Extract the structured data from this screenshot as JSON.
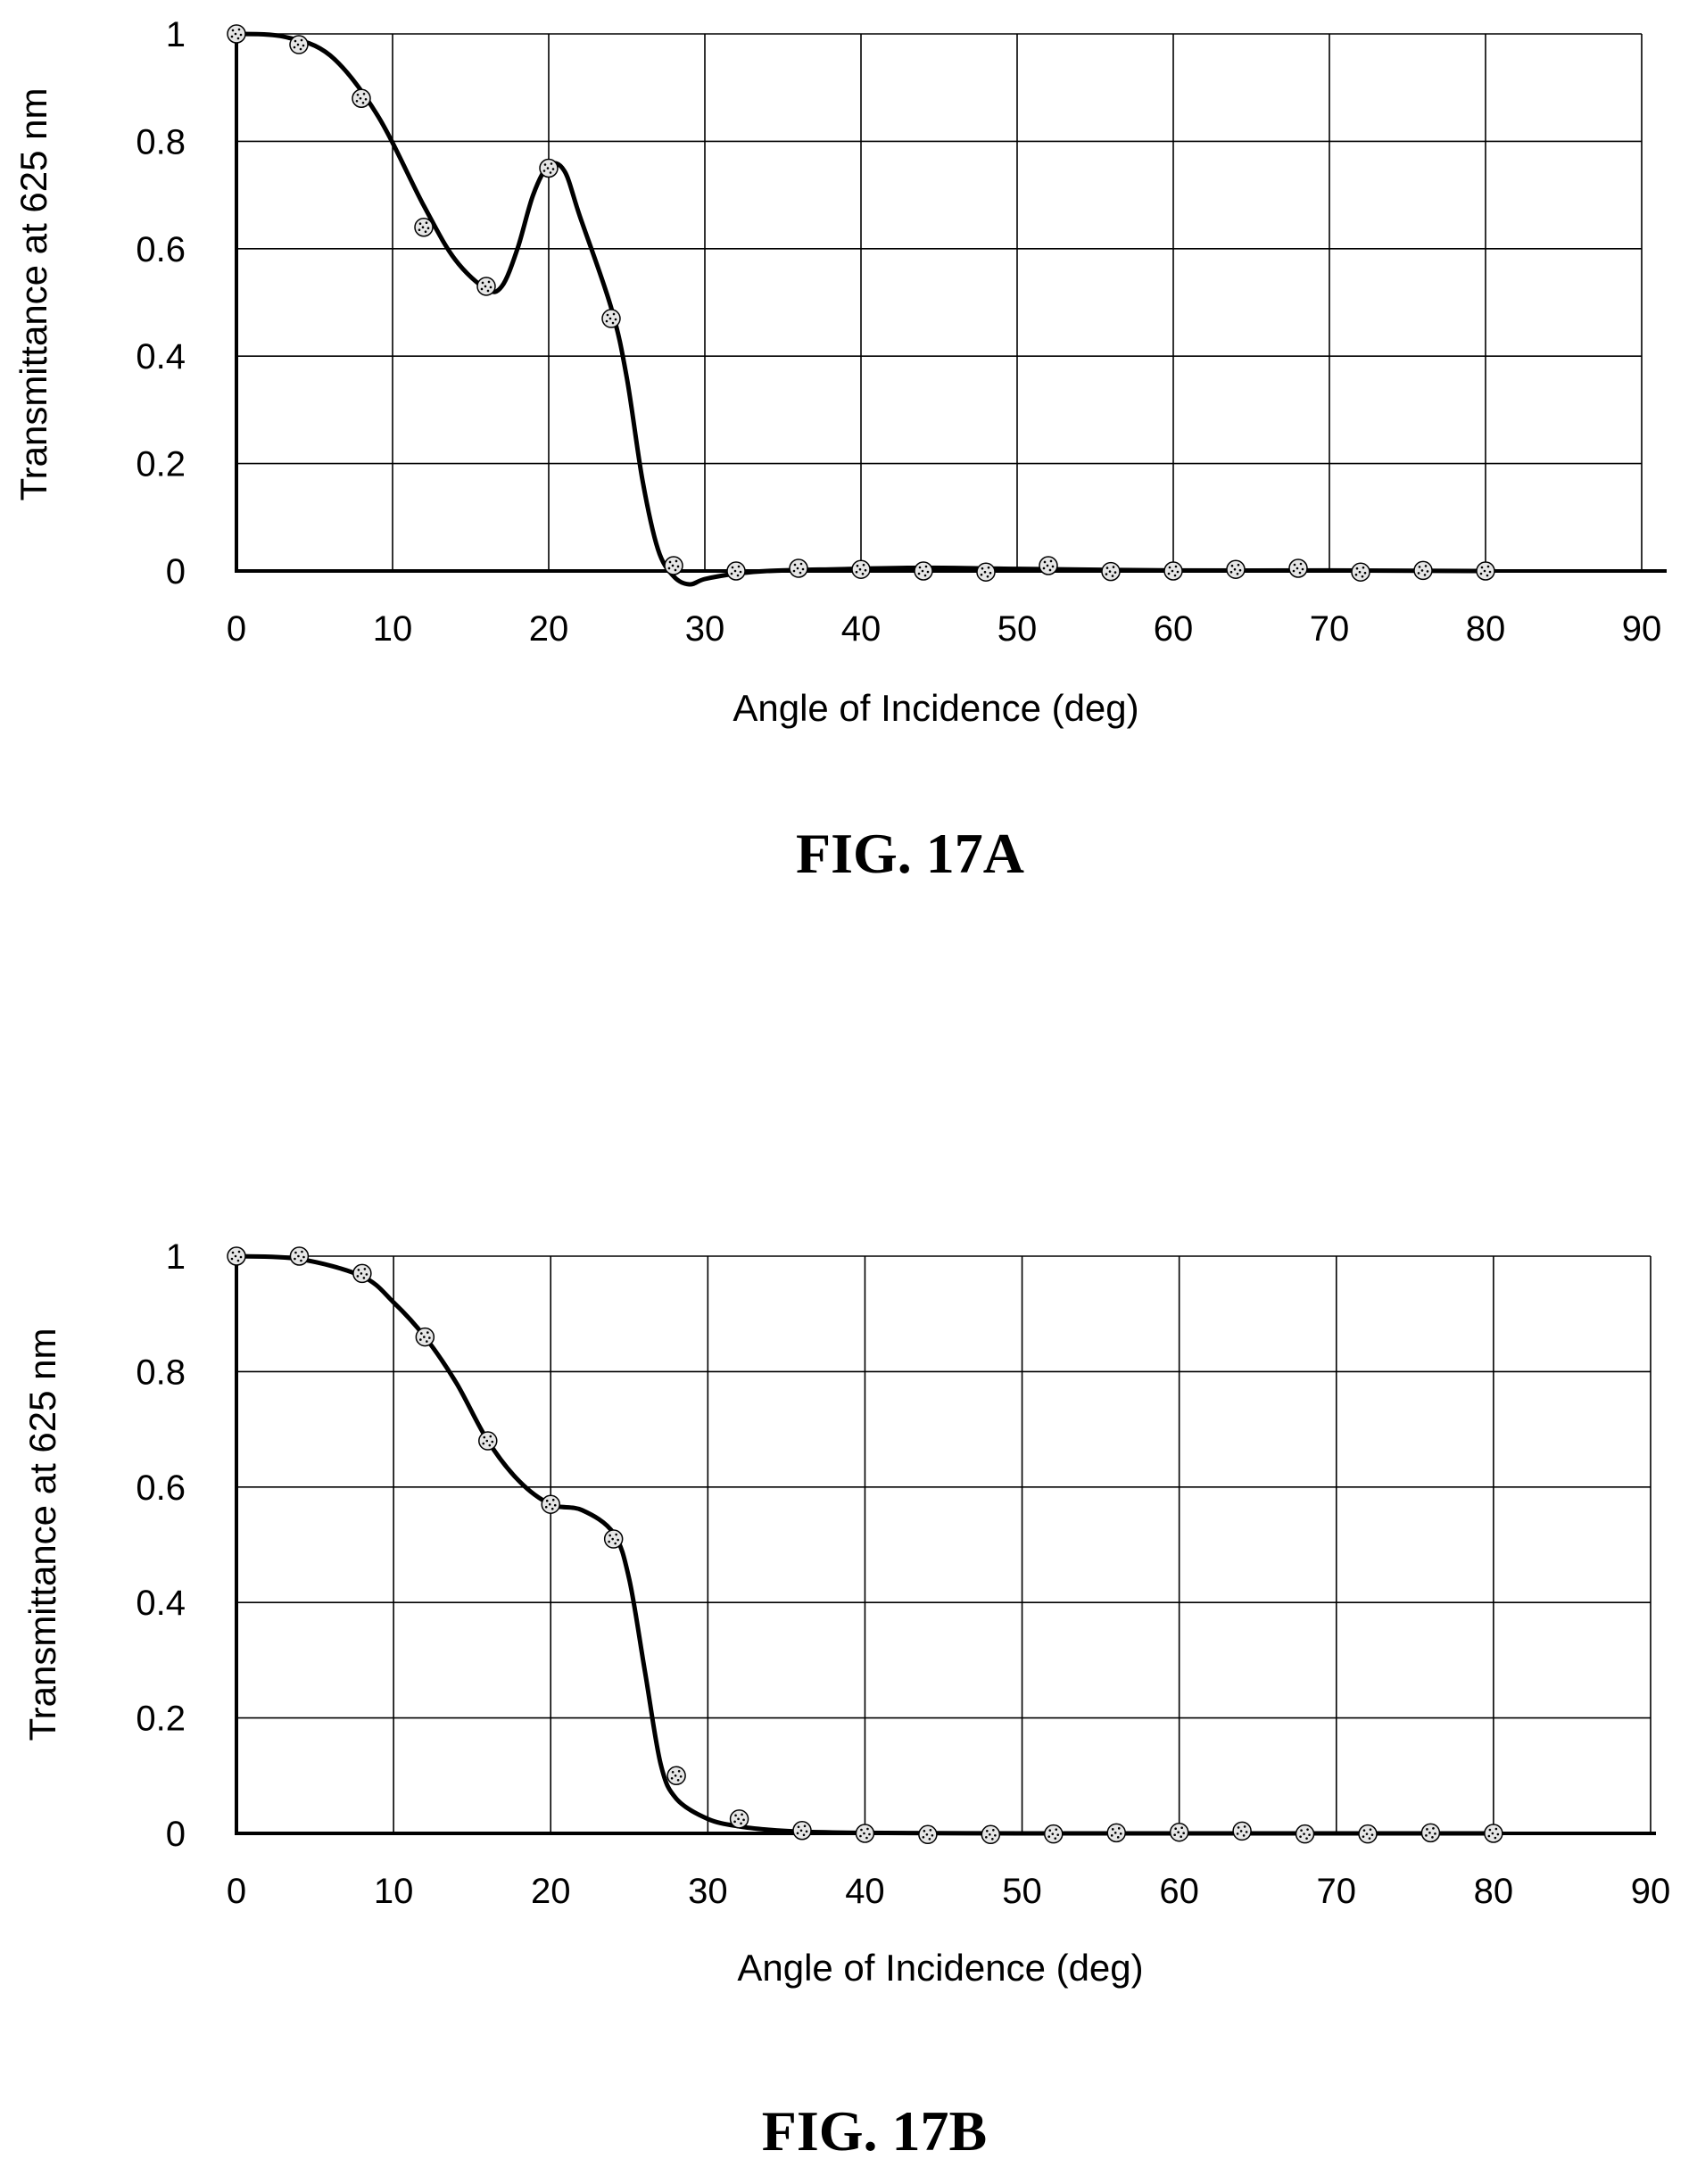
{
  "chart_data": [
    {
      "type": "scatter",
      "figure_label": "FIG. 17A",
      "xlabel": "Angle of Incidence (deg)",
      "ylabel": "Transmittance at 625 nm",
      "xlim": [
        0,
        90
      ],
      "ylim": [
        0,
        1
      ],
      "x_ticks": [
        "0",
        "10",
        "20",
        "30",
        "40",
        "50",
        "60",
        "70",
        "80",
        "90"
      ],
      "y_ticks": [
        "0",
        "0.2",
        "0.4",
        "0.6",
        "0.8",
        "1"
      ],
      "grid": true,
      "series": [
        {
          "style": "markers",
          "x": [
            0,
            4,
            8,
            12,
            16,
            20,
            24,
            28,
            32,
            36,
            40,
            44,
            48,
            52,
            56,
            60,
            64,
            68,
            72,
            76,
            80
          ],
          "y": [
            1.0,
            0.98,
            0.88,
            0.64,
            0.53,
            0.75,
            0.47,
            0.01,
            0.0,
            0.005,
            0.003,
            0.0,
            -0.002,
            0.01,
            -0.001,
            0.0,
            0.003,
            0.005,
            -0.002,
            0.001,
            0.0
          ]
        },
        {
          "style": "line",
          "x": [
            0,
            3,
            6,
            9,
            12,
            14,
            16,
            17,
            18,
            19,
            20,
            21,
            22,
            24,
            25,
            26,
            27,
            28,
            29,
            30,
            32,
            34,
            38,
            44,
            50,
            60,
            70,
            80
          ],
          "y": [
            1.0,
            0.995,
            0.96,
            0.85,
            0.68,
            0.58,
            0.525,
            0.53,
            0.6,
            0.7,
            0.755,
            0.745,
            0.66,
            0.49,
            0.36,
            0.17,
            0.04,
            -0.01,
            -0.025,
            -0.015,
            -0.005,
            0.0,
            0.003,
            0.006,
            0.004,
            0.001,
            0.001,
            0.0
          ]
        }
      ]
    },
    {
      "type": "scatter",
      "figure_label": "FIG. 17B",
      "xlabel": "Angle of Incidence (deg)",
      "ylabel": "Transmittance at 625 nm",
      "xlim": [
        0,
        90
      ],
      "ylim": [
        0,
        1
      ],
      "x_ticks": [
        "0",
        "10",
        "20",
        "30",
        "40",
        "50",
        "60",
        "70",
        "80",
        "90"
      ],
      "y_ticks": [
        "0",
        "0.2",
        "0.4",
        "0.6",
        "0.8",
        "1"
      ],
      "grid": true,
      "series": [
        {
          "style": "markers",
          "x": [
            0,
            4,
            8,
            12,
            16,
            20,
            24,
            28,
            32,
            36,
            40,
            44,
            48,
            52,
            56,
            60,
            64,
            68,
            72,
            76,
            80
          ],
          "y": [
            1.0,
            1.0,
            0.97,
            0.86,
            0.68,
            0.57,
            0.51,
            0.1,
            0.025,
            0.005,
            0.0,
            -0.002,
            -0.002,
            -0.001,
            0.001,
            0.002,
            0.004,
            -0.001,
            -0.001,
            0.001,
            0.0
          ]
        },
        {
          "style": "line",
          "x": [
            0,
            4,
            8,
            10,
            12,
            14,
            16,
            18,
            20,
            22,
            24,
            25,
            26,
            27,
            28,
            30,
            32,
            34,
            36,
            40,
            50,
            60,
            70,
            80
          ],
          "y": [
            1.0,
            0.995,
            0.965,
            0.92,
            0.86,
            0.78,
            0.68,
            0.61,
            0.57,
            0.56,
            0.52,
            0.44,
            0.28,
            0.12,
            0.06,
            0.025,
            0.012,
            0.006,
            0.003,
            0.001,
            0.0,
            0.0,
            0.0,
            0.0
          ]
        }
      ]
    }
  ]
}
